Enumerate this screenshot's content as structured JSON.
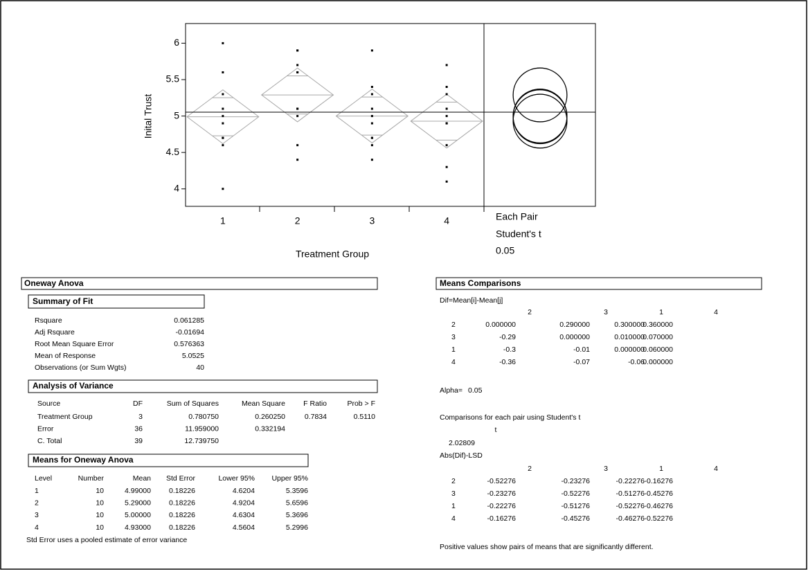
{
  "chart_data": {
    "type": "oneway",
    "y_label": "Inital Trust",
    "x_label": "Treatment Group",
    "categories": [
      "1",
      "2",
      "3",
      "4"
    ],
    "values": [
      [
        6.0,
        5.6,
        5.3,
        5.1,
        5.0,
        4.9,
        4.7,
        4.7,
        4.6,
        4.0
      ],
      [
        5.9,
        5.9,
        5.7,
        5.6,
        5.6,
        5.1,
        5.1,
        5.0,
        4.6,
        4.4
      ],
      [
        5.9,
        5.4,
        5.3,
        5.1,
        5.0,
        4.9,
        4.7,
        4.7,
        4.6,
        4.4
      ],
      [
        5.7,
        5.4,
        5.3,
        5.1,
        5.0,
        4.9,
        4.9,
        4.6,
        4.3,
        4.1
      ]
    ],
    "color": "#000000",
    "diamond_color": "#a8a8a8",
    "ylim": [
      3.76,
      6.27
    ],
    "yticks": [
      4,
      4.5,
      5,
      5.5,
      6
    ],
    "comparison": [
      "Each Pair",
      "Student's t",
      "0.05"
    ]
  },
  "oneway": {
    "title": "Oneway Anova",
    "summary": {
      "title": "Summary of Fit",
      "rows": [
        [
          "Rsquare",
          "0.061285"
        ],
        [
          "Adj Rsquare",
          "-0.01694"
        ],
        [
          "Root Mean Square Error",
          "0.576363"
        ],
        [
          "Mean of Response",
          "5.0525"
        ],
        [
          "Observations (or Sum Wgts)",
          "40"
        ]
      ]
    },
    "anova": {
      "title": "Analysis of Variance",
      "header": [
        "Source",
        "DF",
        "Sum of Squares",
        "Mean Square",
        "F Ratio",
        "Prob > F"
      ],
      "rows": [
        [
          "Treatment Group",
          "3",
          "0.780750",
          "0.260250",
          "0.7834",
          "0.5110"
        ],
        [
          "Error",
          "36",
          "11.959000",
          "0.332194"
        ],
        [
          "C. Total",
          "39",
          "12.739750"
        ]
      ]
    },
    "means": {
      "title": "Means for Oneway Anova",
      "header": [
        "Level",
        "Number",
        "Mean",
        "Std Error",
        "Lower 95%",
        "Upper 95%"
      ],
      "rows": [
        [
          "1",
          "10",
          "4.99000",
          "0.18226",
          "4.6204",
          "5.3596"
        ],
        [
          "2",
          "10",
          "5.29000",
          "0.18226",
          "4.9204",
          "5.6596"
        ],
        [
          "3",
          "10",
          "5.00000",
          "0.18226",
          "4.6304",
          "5.3696"
        ],
        [
          "4",
          "10",
          "4.93000",
          "0.18226",
          "4.5604",
          "5.2996"
        ]
      ],
      "note": "Std Error uses a pooled estimate of error variance"
    }
  },
  "comparisons": {
    "title": "Means Comparisons",
    "dif_label": "Dif=Mean[i]-Mean[j]",
    "columns": [
      "2",
      "3",
      "1",
      "4"
    ],
    "dif_rows": [
      [
        "2",
        "0.000000",
        "0.290000",
        "0.300000",
        "0.360000"
      ],
      [
        "3",
        "-0.29",
        "0.000000",
        "0.010000",
        "0.070000"
      ],
      [
        "1",
        "-0.3",
        "-0.01",
        "0.000000",
        "0.060000"
      ],
      [
        "4",
        "-0.36",
        "-0.07",
        "-0.06",
        "0.000000"
      ]
    ],
    "alpha_label": "Alpha=",
    "alpha": "0.05",
    "compare_text": "Comparisons for each pair using Student's t",
    "t_header": "t",
    "t_value": "2.02809",
    "lsd_label": "Abs(Dif)-LSD",
    "lsd_columns": [
      "2",
      "3",
      "1",
      "4"
    ],
    "lsd_rows": [
      [
        "2",
        "-0.52276",
        "-0.23276",
        "-0.22276",
        "-0.16276"
      ],
      [
        "3",
        "-0.23276",
        "-0.52276",
        "-0.51276",
        "-0.45276"
      ],
      [
        "1",
        "-0.22276",
        "-0.51276",
        "-0.52276",
        "-0.46276"
      ],
      [
        "4",
        "-0.16276",
        "-0.45276",
        "-0.46276",
        "-0.52276"
      ]
    ],
    "footer": "Positive values show pairs of means that are significantly different."
  }
}
